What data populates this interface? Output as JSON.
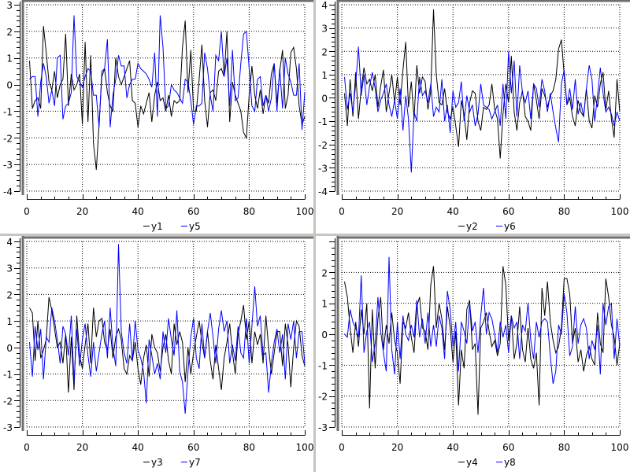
{
  "chart_data": [
    {
      "type": "line",
      "x": "1..100",
      "xlim": [
        0,
        100
      ],
      "ylim": [
        -4,
        3
      ],
      "xticks": [
        "0",
        "20",
        "40",
        "60",
        "80",
        "100"
      ],
      "yticks": [
        "-4",
        "-3",
        "-2",
        "-1",
        "0",
        "1",
        "2",
        "3"
      ],
      "grid": true,
      "legend_position": "bottom",
      "series": [
        {
          "name": "y1",
          "color": "#000000",
          "values": [
            0.9,
            -0.9,
            -0.6,
            -0.5,
            -0.9,
            2.2,
            1.2,
            0.1,
            -0.2,
            0.5,
            -0.5,
            0.0,
            0.2,
            1.9,
            -0.8,
            0.4,
            -0.2,
            0.0,
            0.4,
            -1.5,
            1.6,
            -1.4,
            1.1,
            -2.2,
            -3.2,
            -1.5,
            0.3,
            0.6,
            -0.3,
            -0.8,
            -1.0,
            1.0,
            0.3,
            0.0,
            0.3,
            0.6,
            0.9,
            -0.6,
            -0.7,
            -1.6,
            -0.8,
            -1.1,
            -0.7,
            -0.3,
            -1.4,
            -0.4,
            0.1,
            -0.6,
            -0.5,
            -1.0,
            -0.4,
            -1.2,
            -0.6,
            -0.7,
            -0.6,
            1.4,
            2.4,
            -0.3,
            1.3,
            -1.0,
            -1.0,
            0.2,
            1.5,
            -0.6,
            -1.6,
            -0.3,
            -0.2,
            -0.6,
            0.5,
            0.6,
            0.3,
            2.0,
            -1.4,
            0.1,
            -0.4,
            -0.7,
            -1.0,
            -1.8,
            -2.0,
            -0.4,
            0.7,
            -0.4,
            -0.9,
            -0.2,
            -1.1,
            -0.4,
            -0.7,
            0.4,
            0.8,
            -0.7,
            0.5,
            1.3,
            -0.9,
            -0.4,
            1.2,
            1.4,
            0.6,
            -0.8,
            -1.5,
            -1.2
          ]
        },
        {
          "name": "y5",
          "color": "#0000ff",
          "values": [
            0.2,
            0.3,
            0.3,
            -1.2,
            0.1,
            0.8,
            0.3,
            -0.7,
            -0.2,
            -0.8,
            1.0,
            1.1,
            -1.3,
            -0.8,
            -0.7,
            -0.3,
            2.6,
            0.3,
            0.1,
            -0.1,
            0.3,
            0.6,
            0.5,
            -0.4,
            -0.4,
            -1.6,
            0.5,
            0.6,
            1.7,
            -1.6,
            -0.4,
            0.2,
            1.1,
            0.7,
            0.7,
            -0.5,
            0.0,
            0.2,
            0.2,
            0.8,
            0.6,
            0.5,
            0.4,
            0.2,
            -0.1,
            1.2,
            -1.2,
            2.6,
            1.4,
            -0.9,
            -0.8,
            0.0,
            -0.2,
            -0.3,
            -0.5,
            -0.7,
            0.2,
            0.1,
            -0.6,
            -1.5,
            -0.8,
            -0.8,
            -0.7,
            1.2,
            0.6,
            -0.4,
            -1.0,
            1.1,
            0.9,
            2.0,
            0.3,
            1.0,
            -0.8,
            1.3,
            -0.6,
            -0.5,
            0.8,
            1.9,
            2.0,
            0.6,
            -0.8,
            -1.0,
            0.2,
            0.3,
            -0.8,
            -0.4,
            -1.0,
            -0.5,
            0.8,
            -1.0,
            0.6,
            -0.9,
            1.0,
            0.4,
            0.1,
            -0.4,
            -0.4,
            0.8,
            -1.7,
            -0.3
          ]
        }
      ]
    },
    {
      "type": "line",
      "x": "1..100",
      "xlim": [
        0,
        100
      ],
      "ylim": [
        -4,
        4
      ],
      "xticks": [
        "0",
        "20",
        "40",
        "60",
        "80",
        "100"
      ],
      "yticks": [
        "-4",
        "-3",
        "-2",
        "-1",
        "0",
        "1",
        "2",
        "3",
        "4"
      ],
      "grid": true,
      "legend_position": "bottom",
      "series": [
        {
          "name": "y2",
          "color": "#000000",
          "values": [
            0.2,
            -1.2,
            0.8,
            -0.8,
            1.1,
            -0.9,
            0.4,
            1.3,
            0.6,
            0.8,
            0.3,
            1.0,
            -0.4,
            0.5,
            1.2,
            -0.6,
            0.2,
            1.0,
            -0.2,
            0.9,
            -0.3,
            1.2,
            2.4,
            -0.4,
            0.7,
            -0.9,
            1.4,
            0.2,
            0.9,
            0.7,
            -0.5,
            0.3,
            3.8,
            1.0,
            -0.2,
            -0.3,
            0.4,
            -0.6,
            -0.9,
            -0.4,
            -1.2,
            -2.1,
            -0.1,
            -0.7,
            -1.8,
            -0.2,
            0.3,
            0.2,
            -1.0,
            -1.4,
            -0.4,
            -0.5,
            -0.3,
            0.6,
            -0.5,
            -0.9,
            -2.6,
            -0.7,
            0.6,
            -0.2,
            1.8,
            -0.6,
            -1.4,
            -0.2,
            0.3,
            -0.8,
            -1.0,
            -1.4,
            0.6,
            -0.1,
            -0.9,
            0.4,
            0.1,
            -0.4,
            0.1,
            0.3,
            0.8,
            2.1,
            2.5,
            1.0,
            -0.3,
            0.0,
            -0.8,
            -1.2,
            -0.1,
            -0.6,
            -0.8,
            0.4,
            -1.0,
            -1.3,
            0.1,
            -0.4,
            0.6,
            1.1,
            -0.5,
            0.3,
            -0.9,
            -1.7,
            0.8,
            -0.6
          ]
        },
        {
          "name": "y6",
          "color": "#0000ff",
          "values": [
            0.9,
            -0.5,
            0.2,
            -0.6,
            0.6,
            2.2,
            0.1,
            1.0,
            -0.3,
            0.5,
            1.1,
            0.4,
            -0.6,
            -0.1,
            0.2,
            0.6,
            -0.3,
            -0.8,
            -0.1,
            -0.9,
            0.4,
            -1.4,
            0.1,
            -0.9,
            -3.2,
            -0.6,
            -1.0,
            0.9,
            0.1,
            0.3,
            -0.2,
            0.6,
            -0.8,
            -0.4,
            -0.6,
            0.8,
            -1.0,
            -0.3,
            -1.5,
            0.3,
            -0.4,
            -0.2,
            0.7,
            -1.0,
            0.1,
            -0.6,
            -0.3,
            -1.2,
            -0.7,
            0.6,
            -0.3,
            -0.4,
            -0.5,
            -0.9,
            -0.6,
            -0.3,
            -1.2,
            0.6,
            -0.9,
            2.0,
            0.2,
            1.6,
            -0.8,
            1.4,
            0.2,
            -0.2,
            0.3,
            -0.9,
            0.6,
            0.4,
            -0.4,
            0.8,
            0.3,
            -0.6,
            0.2,
            -0.6,
            -1.3,
            -1.9,
            0.6,
            1.2,
            -0.3,
            0.4,
            -0.5,
            0.8,
            -0.7,
            -0.2,
            -0.8,
            0.4,
            1.4,
            0.8,
            -1.0,
            0.1,
            1.3,
            0.2,
            -0.6,
            -0.4,
            -0.7,
            -1.2,
            -0.6,
            -1.0
          ]
        }
      ]
    },
    {
      "type": "line",
      "x": "1..100",
      "xlim": [
        0,
        100
      ],
      "ylim": [
        -3,
        4
      ],
      "xticks": [
        "0",
        "20",
        "40",
        "60",
        "80",
        "100"
      ],
      "yticks": [
        "-3",
        "-2",
        "-1",
        "0",
        "1",
        "2",
        "3",
        "4"
      ],
      "grid": true,
      "legend_position": "bottom",
      "series": [
        {
          "name": "y3",
          "color": "#000000",
          "values": [
            1.5,
            1.3,
            -0.5,
            1.0,
            -0.4,
            -0.1,
            0.3,
            1.9,
            1.4,
            0.7,
            0.0,
            0.2,
            -0.6,
            0.5,
            -1.7,
            0.4,
            -1.6,
            1.2,
            -0.3,
            -0.8,
            0.1,
            0.9,
            -0.6,
            1.5,
            0.4,
            1.0,
            1.1,
            0.2,
            -0.1,
            0.7,
            -0.4,
            0.4,
            0.7,
            0.3,
            -0.8,
            -1.0,
            -0.3,
            -0.5,
            0.2,
            -0.8,
            -1.4,
            -0.4,
            0.1,
            -1.1,
            0.5,
            0.0,
            -0.2,
            -0.9,
            0.0,
            0.5,
            -0.5,
            -1.0,
            0.9,
            0.1,
            0.6,
            0.2,
            -1.3,
            0.0,
            -1.0,
            -0.2,
            0.4,
            1.0,
            0.2,
            -0.4,
            0.6,
            -0.5,
            -1.2,
            0.1,
            -0.8,
            -1.6,
            -0.4,
            0.2,
            0.9,
            -0.2,
            -1.0,
            0.5,
            1.0,
            1.6,
            0.3,
            1.0,
            -0.6,
            0.6,
            0.1,
            0.5,
            -0.6,
            1.2,
            0.0,
            -1.0,
            -0.2,
            0.6,
            0.6,
            -0.7,
            0.9,
            0.1,
            -1.5,
            0.0,
            1.0,
            0.8,
            -0.3,
            -0.7
          ]
        },
        {
          "name": "y7",
          "color": "#0000ff",
          "values": [
            0.2,
            -1.1,
            0.8,
            -0.1,
            0.7,
            -1.2,
            0.4,
            0.2,
            1.5,
            1.0,
            0.3,
            -0.6,
            0.8,
            0.5,
            -0.3,
            1.2,
            -1.3,
            0.7,
            -0.7,
            0.3,
            0.9,
            -0.3,
            -1.1,
            0.2,
            -0.9,
            -0.2,
            0.5,
            1.0,
            -0.4,
            1.5,
            0.0,
            -0.7,
            3.9,
            0.6,
            -0.2,
            -0.6,
            0.9,
            -0.5,
            1.0,
            -0.1,
            -0.4,
            -0.9,
            -2.1,
            0.3,
            -0.3,
            -1.0,
            -0.6,
            -1.2,
            0.6,
            -0.2,
            1.1,
            0.3,
            -0.3,
            1.4,
            -0.9,
            -1.3,
            -2.5,
            -0.9,
            0.4,
            1.1,
            -0.4,
            -0.8,
            0.9,
            -0.4,
            0.6,
            1.3,
            0.4,
            -0.6,
            0.7,
            1.4,
            0.6,
            1.0,
            -0.6,
            0.1,
            -0.5,
            0.8,
            -0.2,
            -0.4,
            1.1,
            -0.6,
            0.8,
            2.3,
            0.8,
            1.2,
            -0.3,
            -0.2,
            -1.7,
            -0.6,
            0.2,
            0.7,
            -0.2,
            0.5,
            -1.2,
            0.9,
            0.3,
            1.0,
            -0.4,
            0.6,
            0.6,
            -0.6
          ]
        }
      ]
    },
    {
      "type": "line",
      "x": "1..100",
      "xlim": [
        0,
        100
      ],
      "ylim": [
        -3,
        3
      ],
      "xticks": [
        "0",
        "20",
        "40",
        "60",
        "80",
        "100"
      ],
      "yticks": [
        "-3",
        "-2",
        "-1",
        "0",
        "1",
        "2"
      ],
      "grid": true,
      "legend_position": "bottom",
      "series": [
        {
          "name": "y4",
          "color": "#000000",
          "values": [
            1.7,
            1.2,
            0.2,
            -0.6,
            0.4,
            -0.4,
            0.8,
            0.0,
            1.0,
            -2.4,
            0.8,
            -1.1,
            0.5,
            1.2,
            -0.5,
            0.3,
            -0.3,
            0.7,
            -0.2,
            -0.6,
            -1.6,
            0.4,
            0.2,
            0.7,
            -0.1,
            -0.6,
            0.9,
            1.2,
            0.2,
            0.1,
            -0.5,
            1.6,
            2.2,
            0.2,
            1.0,
            0.5,
            -0.5,
            0.9,
            0.2,
            -0.9,
            0.1,
            -2.3,
            -0.5,
            -1.1,
            0.8,
            1.1,
            -0.5,
            -0.3,
            -2.6,
            0.2,
            0.4,
            0.7,
            0.1,
            -0.4,
            -0.2,
            -0.7,
            -0.3,
            2.2,
            1.6,
            -0.2,
            0.6,
            -0.8,
            -0.3,
            0.9,
            -0.5,
            -0.9,
            0.2,
            -0.8,
            -1.1,
            -0.6,
            -2.3,
            1.5,
            0.6,
            1.7,
            0.4,
            -0.2,
            -0.6,
            -0.4,
            0.2,
            1.8,
            1.8,
            1.3,
            -0.3,
            0.2,
            -0.9,
            -0.5,
            -1.2,
            -0.7,
            -0.4,
            -0.8,
            -1.0,
            0.7,
            -0.3,
            -0.6,
            1.8,
            1.2,
            0.3,
            -0.1,
            -1.0,
            -0.3
          ]
        },
        {
          "name": "y8",
          "color": "#0000ff",
          "values": [
            0.0,
            -0.1,
            0.8,
            0.4,
            0.2,
            -0.1,
            1.9,
            -0.6,
            0.1,
            0.4,
            -0.9,
            -0.3,
            1.2,
            0.1,
            -0.6,
            -1.2,
            2.5,
            -0.5,
            -1.3,
            0.4,
            -0.8,
            0.6,
            0.0,
            -0.2,
            0.3,
            -0.1,
            1.1,
            -0.1,
            0.5,
            -0.3,
            0.7,
            -0.4,
            0.3,
            -0.4,
            0.6,
            0.2,
            -0.8,
            1.4,
            0.8,
            -0.4,
            0.4,
            -1.2,
            0.4,
            0.1,
            -0.3,
            1.0,
            0.1,
            0.4,
            -0.6,
            0.6,
            1.5,
            0.0,
            0.7,
            0.5,
            0.0,
            -0.6,
            0.4,
            -0.1,
            0.3,
            -0.6,
            0.6,
            0.2,
            0.4,
            -0.8,
            0.3,
            0.1,
            1.0,
            -0.2,
            -0.8,
            0.4,
            -0.1,
            0.4,
            0.5,
            0.4,
            -0.7,
            -1.6,
            -1.2,
            0.3,
            0.0,
            1.3,
            0.7,
            -0.7,
            -0.4,
            0.9,
            -0.3,
            0.3,
            0.5,
            0.2,
            -0.8,
            -0.2,
            -0.5,
            0.3,
            -1.3,
            1.0,
            0.3,
            0.9,
            1.0,
            -0.8,
            0.5,
            -0.4
          ]
        }
      ]
    }
  ]
}
